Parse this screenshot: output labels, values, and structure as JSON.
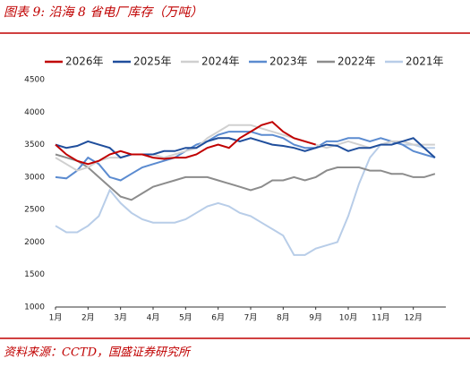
{
  "header": {
    "title": "图表 9:  沿海 8 省电厂库存（万吨）"
  },
  "chart_data": {
    "type": "line",
    "categories": [
      "1月",
      null,
      null,
      "2月",
      null,
      null,
      "3月",
      null,
      null,
      "4月",
      null,
      null,
      "5月",
      null,
      null,
      "6月",
      null,
      null,
      "7月",
      null,
      null,
      "8月",
      null,
      null,
      "9月",
      null,
      null,
      "10月",
      null,
      null,
      "11月",
      null,
      null,
      "12月",
      null,
      null
    ],
    "ylim": [
      1000,
      4500
    ],
    "yticks": [
      1000,
      1500,
      2000,
      2500,
      3000,
      3500,
      4000,
      4500
    ],
    "series": [
      {
        "name": "2026年",
        "color": "#c00000",
        "values": [
          3500,
          3350,
          3250,
          3200,
          3250,
          3350,
          3400,
          3350,
          3350,
          3300,
          3280,
          3300,
          3300,
          3350,
          3450,
          3500,
          3450,
          3600,
          3700,
          3800,
          3850,
          3700,
          3600,
          3550,
          3500,
          null,
          null,
          null,
          null,
          null,
          null,
          null,
          null,
          null,
          null,
          null
        ]
      },
      {
        "name": "2025年",
        "color": "#1f4e9c",
        "values": [
          3500,
          3450,
          3480,
          3550,
          3500,
          3450,
          3300,
          3350,
          3350,
          3350,
          3400,
          3400,
          3450,
          3450,
          3550,
          3600,
          3600,
          3550,
          3600,
          3550,
          3500,
          3480,
          3450,
          3400,
          3450,
          3500,
          3480,
          3400,
          3450,
          3450,
          3500,
          3500,
          3550,
          3600,
          3450,
          3300
        ]
      },
      {
        "name": "2024年",
        "color": "#d0d0d0",
        "values": [
          3300,
          3200,
          3100,
          3150,
          3250,
          3300,
          3300,
          3350,
          3350,
          3350,
          3300,
          3350,
          3400,
          3450,
          3600,
          3700,
          3800,
          3800,
          3800,
          3750,
          3700,
          3650,
          3600,
          3550,
          3500,
          3450,
          3500,
          3550,
          3500,
          3450,
          3500,
          3550,
          3550,
          3500,
          3500,
          3500
        ]
      },
      {
        "name": "2023年",
        "color": "#5b8bd0",
        "values": [
          3000,
          2980,
          3100,
          3300,
          3200,
          3000,
          2950,
          3050,
          3150,
          3200,
          3250,
          3300,
          3400,
          3500,
          3550,
          3650,
          3700,
          3700,
          3700,
          3650,
          3650,
          3600,
          3500,
          3450,
          3450,
          3550,
          3550,
          3600,
          3600,
          3550,
          3600,
          3550,
          3500,
          3400,
          3350,
          3300
        ]
      },
      {
        "name": "2022年",
        "color": "#8c8c8c",
        "values": [
          3350,
          3300,
          3250,
          3150,
          3000,
          2850,
          2700,
          2650,
          2750,
          2850,
          2900,
          2950,
          3000,
          3000,
          3000,
          2950,
          2900,
          2850,
          2800,
          2850,
          2950,
          2950,
          3000,
          2950,
          3000,
          3100,
          3150,
          3150,
          3150,
          3100,
          3100,
          3050,
          3050,
          3000,
          3000,
          3050
        ]
      },
      {
        "name": "2021年",
        "color": "#b8cde8",
        "values": [
          2250,
          2150,
          2150,
          2250,
          2400,
          2800,
          2600,
          2450,
          2350,
          2300,
          2300,
          2300,
          2350,
          2450,
          2550,
          2600,
          2550,
          2450,
          2400,
          2300,
          2200,
          2100,
          1800,
          1800,
          1900,
          1950,
          2000,
          2400,
          2900,
          3300,
          3500,
          3550,
          3500,
          3500,
          3450,
          3450
        ]
      }
    ]
  },
  "footer": {
    "source": "资料来源：CCTD，国盛证券研究所"
  }
}
